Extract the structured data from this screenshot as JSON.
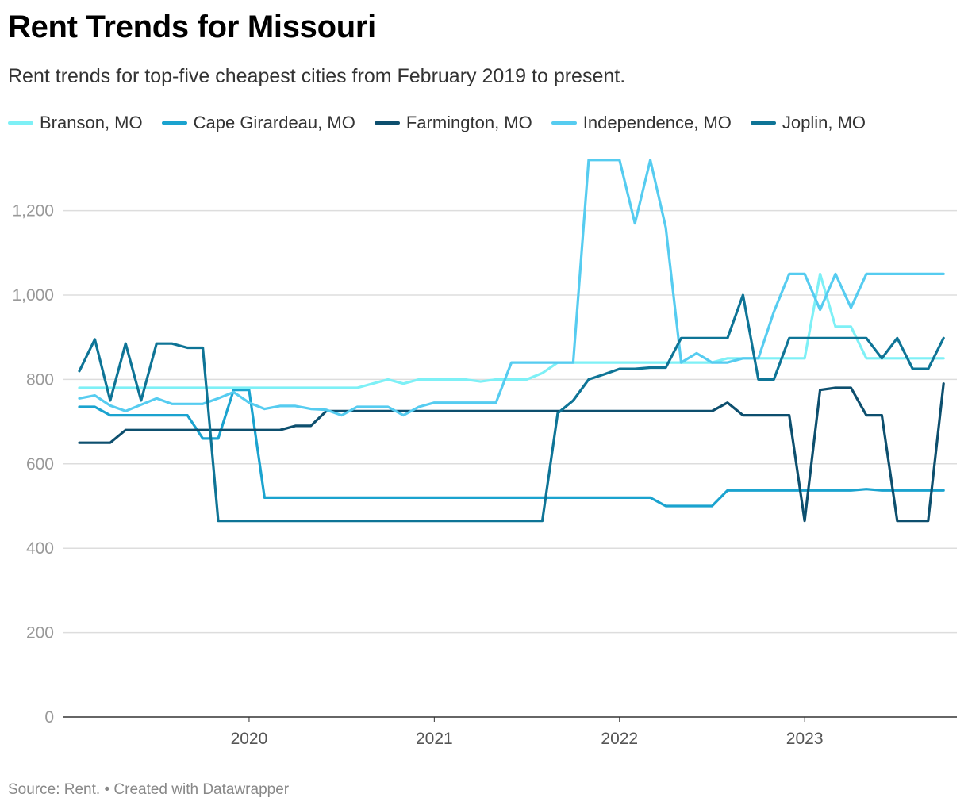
{
  "title": "Rent Trends for Missouri",
  "subtitle": "Rent trends for top-five cheapest cities from February 2019 to present.",
  "footer": {
    "source": "Source: Rent.",
    "separator": "•",
    "credit": "Created with Datawrapper"
  },
  "chart_data": {
    "type": "line",
    "title": "Rent Trends for Missouri",
    "subtitle": "Rent trends for top-five cheapest cities from February 2019 to present.",
    "xlabel": "",
    "ylabel": "",
    "x_range": [
      "2019-02",
      "2023-10"
    ],
    "ylim": [
      0,
      1330
    ],
    "yticks": [
      0,
      200,
      400,
      600,
      800,
      1000,
      1200
    ],
    "ytick_labels": [
      "0",
      "200",
      "400",
      "600",
      "800",
      "1,000",
      "1,200"
    ],
    "xticks": [
      "2020",
      "2021",
      "2022",
      "2023"
    ],
    "grid": "horizontal",
    "legend_position": "top",
    "x": [
      "2019-02",
      "2019-03",
      "2019-04",
      "2019-05",
      "2019-06",
      "2019-07",
      "2019-08",
      "2019-09",
      "2019-10",
      "2019-11",
      "2019-12",
      "2020-01",
      "2020-02",
      "2020-03",
      "2020-04",
      "2020-05",
      "2020-06",
      "2020-07",
      "2020-08",
      "2020-09",
      "2020-10",
      "2020-11",
      "2020-12",
      "2021-01",
      "2021-02",
      "2021-03",
      "2021-04",
      "2021-05",
      "2021-06",
      "2021-07",
      "2021-08",
      "2021-09",
      "2021-10",
      "2021-11",
      "2021-12",
      "2022-01",
      "2022-02",
      "2022-03",
      "2022-04",
      "2022-05",
      "2022-06",
      "2022-07",
      "2022-08",
      "2022-09",
      "2022-10",
      "2022-11",
      "2022-12",
      "2023-01",
      "2023-02",
      "2023-03",
      "2023-04",
      "2023-05",
      "2023-06",
      "2023-07",
      "2023-08",
      "2023-09",
      "2023-10"
    ],
    "series": [
      {
        "name": "Branson, MO",
        "color": "#7ef0f6",
        "values": [
          780,
          780,
          780,
          780,
          780,
          780,
          780,
          780,
          780,
          780,
          780,
          780,
          780,
          780,
          780,
          780,
          780,
          780,
          780,
          790,
          800,
          790,
          800,
          800,
          800,
          800,
          795,
          800,
          800,
          800,
          815,
          840,
          840,
          840,
          840,
          840,
          840,
          840,
          840,
          840,
          840,
          840,
          850,
          850,
          850,
          850,
          850,
          850,
          1050,
          925,
          925,
          850,
          850,
          850,
          850,
          850,
          850
        ]
      },
      {
        "name": "Cape Girardeau, MO",
        "color": "#1ba3cf",
        "values": [
          735,
          735,
          715,
          715,
          715,
          715,
          715,
          715,
          660,
          660,
          775,
          775,
          520,
          520,
          520,
          520,
          520,
          520,
          520,
          520,
          520,
          520,
          520,
          520,
          520,
          520,
          520,
          520,
          520,
          520,
          520,
          520,
          520,
          520,
          520,
          520,
          520,
          520,
          500,
          500,
          500,
          500,
          537,
          537,
          537,
          537,
          537,
          537,
          537,
          537,
          537,
          540,
          537,
          537,
          537,
          537,
          537
        ]
      },
      {
        "name": "Farmington, MO",
        "color": "#0d4f6e",
        "values": [
          650,
          650,
          650,
          680,
          680,
          680,
          680,
          680,
          680,
          680,
          680,
          680,
          680,
          680,
          690,
          690,
          725,
          725,
          725,
          725,
          725,
          725,
          725,
          725,
          725,
          725,
          725,
          725,
          725,
          725,
          725,
          725,
          725,
          725,
          725,
          725,
          725,
          725,
          725,
          725,
          725,
          725,
          745,
          715,
          715,
          715,
          715,
          465,
          775,
          780,
          780,
          715,
          715,
          465,
          465,
          465,
          790
        ]
      },
      {
        "name": "Independence, MO",
        "color": "#56ccf0",
        "values": [
          755,
          762,
          738,
          725,
          740,
          755,
          742,
          742,
          742,
          755,
          770,
          745,
          730,
          737,
          737,
          730,
          728,
          715,
          735,
          735,
          735,
          715,
          735,
          745,
          745,
          745,
          745,
          745,
          840,
          840,
          840,
          840,
          840,
          1320,
          1320,
          1320,
          1170,
          1320,
          1160,
          840,
          862,
          840,
          840,
          850,
          850,
          960,
          1050,
          1050,
          965,
          1050,
          970,
          1050,
          1050,
          1050,
          1050,
          1050,
          1050
        ]
      },
      {
        "name": "Joplin, MO",
        "color": "#0e7496",
        "values": [
          820,
          895,
          750,
          885,
          750,
          885,
          885,
          875,
          875,
          465,
          465,
          465,
          465,
          465,
          465,
          465,
          465,
          465,
          465,
          465,
          465,
          465,
          465,
          465,
          465,
          465,
          465,
          465,
          465,
          465,
          465,
          720,
          750,
          800,
          812,
          825,
          825,
          828,
          828,
          898,
          898,
          898,
          898,
          1000,
          800,
          800,
          898,
          898,
          898,
          898,
          898,
          898,
          850,
          898,
          825,
          825,
          898
        ]
      }
    ]
  }
}
